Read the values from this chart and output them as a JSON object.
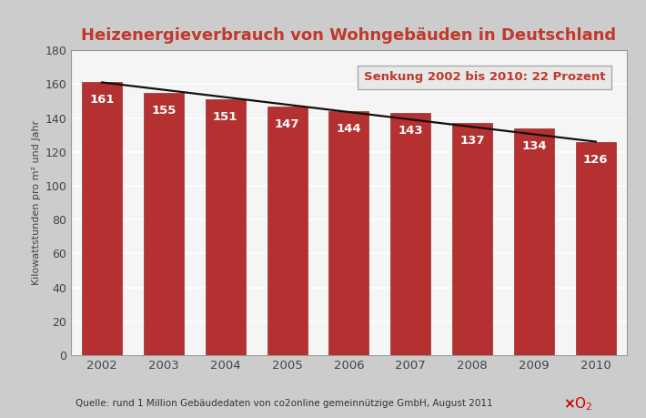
{
  "title": "Heizenergieverbrauch von Wohngebäuden in Deutschland",
  "years": [
    2002,
    2003,
    2004,
    2005,
    2006,
    2007,
    2008,
    2009,
    2010
  ],
  "values": [
    161,
    155,
    151,
    147,
    144,
    143,
    137,
    134,
    126
  ],
  "bar_color": "#b53030",
  "bar_edge_color": "#993030",
  "ylabel": "Kilowattstunden pro m² und Jahr",
  "ylim": [
    0,
    180
  ],
  "yticks": [
    0,
    20,
    40,
    60,
    80,
    100,
    120,
    140,
    160,
    180
  ],
  "annotation_box_text": "Senkung 2002 bis 2010: 22 Prozent",
  "annotation_box_facecolor": "#e8e8e8",
  "annotation_box_edgecolor": "#aaaaaa",
  "annotation_text_color": "#c0392b",
  "trend_line_color": "#111111",
  "source_text": "Quelle: rund 1 Million Gebäudedaten von co2online gemeinnützige GmbH, August 2011",
  "background_color": "#cccccc",
  "plot_bg_color": "#f5f5f5",
  "grid_color": "#ffffff",
  "label_color": "#ffffff",
  "title_color": "#c0392b",
  "axis_color": "#999999",
  "tick_label_color": "#444444",
  "bar_width": 0.65
}
